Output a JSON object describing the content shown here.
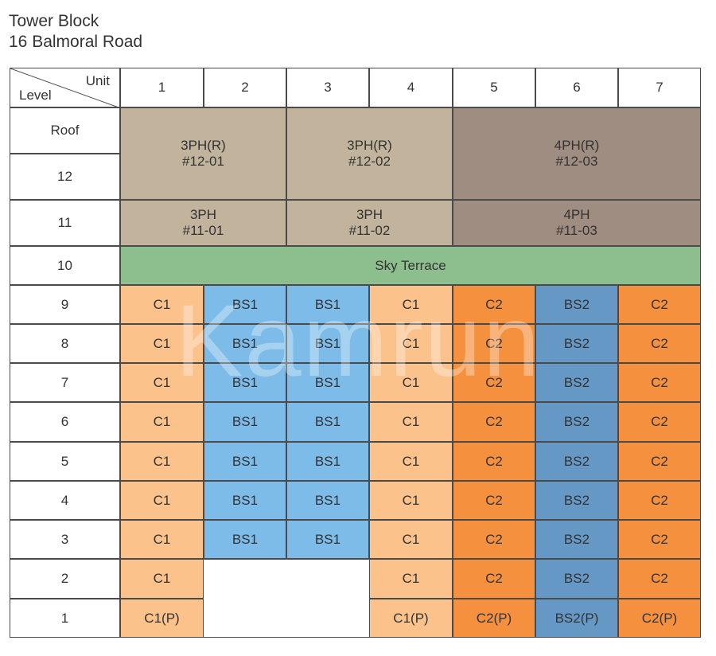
{
  "title": {
    "line1": "Tower Block",
    "line2": "16 Balmoral Road"
  },
  "header": {
    "unit_label": "Unit",
    "level_label": "Level",
    "units": [
      "1",
      "2",
      "3",
      "4",
      "5",
      "6",
      "7"
    ]
  },
  "levels": [
    "Roof",
    "12",
    "11",
    "10",
    "9",
    "8",
    "7",
    "6",
    "5",
    "4",
    "3",
    "2",
    "1"
  ],
  "colors": {
    "penthouse_light": "#c2b49c",
    "penthouse_dark": "#9e8d80",
    "sky_terrace": "#8dbe8e",
    "C1": "#fcc28c",
    "BS1": "#7dbbe8",
    "C2": "#f5913e",
    "BS2": "#6698c6",
    "empty": "#ffffff"
  },
  "penthouses": [
    {
      "type": "3PH(R)",
      "unit": "#12-01"
    },
    {
      "type": "3PH(R)",
      "unit": "#12-02"
    },
    {
      "type": "4PH(R)",
      "unit": "#12-03"
    },
    {
      "type": "3PH",
      "unit": "#11-01"
    },
    {
      "type": "3PH",
      "unit": "#11-02"
    },
    {
      "type": "4PH",
      "unit": "#11-03"
    }
  ],
  "sky_terrace": "Sky Terrace",
  "rows": [
    {
      "level": "9",
      "cells": [
        "C1",
        "BS1",
        "BS1",
        "C1",
        "C2",
        "BS2",
        "C2"
      ]
    },
    {
      "level": "8",
      "cells": [
        "C1",
        "BS1",
        "BS1",
        "C1",
        "C2",
        "BS2",
        "C2"
      ]
    },
    {
      "level": "7",
      "cells": [
        "C1",
        "BS1",
        "BS1",
        "C1",
        "C2",
        "BS2",
        "C2"
      ]
    },
    {
      "level": "6",
      "cells": [
        "C1",
        "BS1",
        "BS1",
        "C1",
        "C2",
        "BS2",
        "C2"
      ]
    },
    {
      "level": "5",
      "cells": [
        "C1",
        "BS1",
        "BS1",
        "C1",
        "C2",
        "BS2",
        "C2"
      ]
    },
    {
      "level": "4",
      "cells": [
        "C1",
        "BS1",
        "BS1",
        "C1",
        "C2",
        "BS2",
        "C2"
      ]
    },
    {
      "level": "3",
      "cells": [
        "C1",
        "BS1",
        "BS1",
        "C1",
        "C2",
        "BS2",
        "C2"
      ]
    },
    {
      "level": "2",
      "cells": [
        "C1",
        "",
        "",
        "C1",
        "C2",
        "BS2",
        "C2"
      ]
    },
    {
      "level": "1",
      "cells": [
        "C1(P)",
        "",
        "",
        "C1(P)",
        "C2(P)",
        "BS2(P)",
        "C2(P)"
      ]
    }
  ],
  "watermark": "Kamrun"
}
